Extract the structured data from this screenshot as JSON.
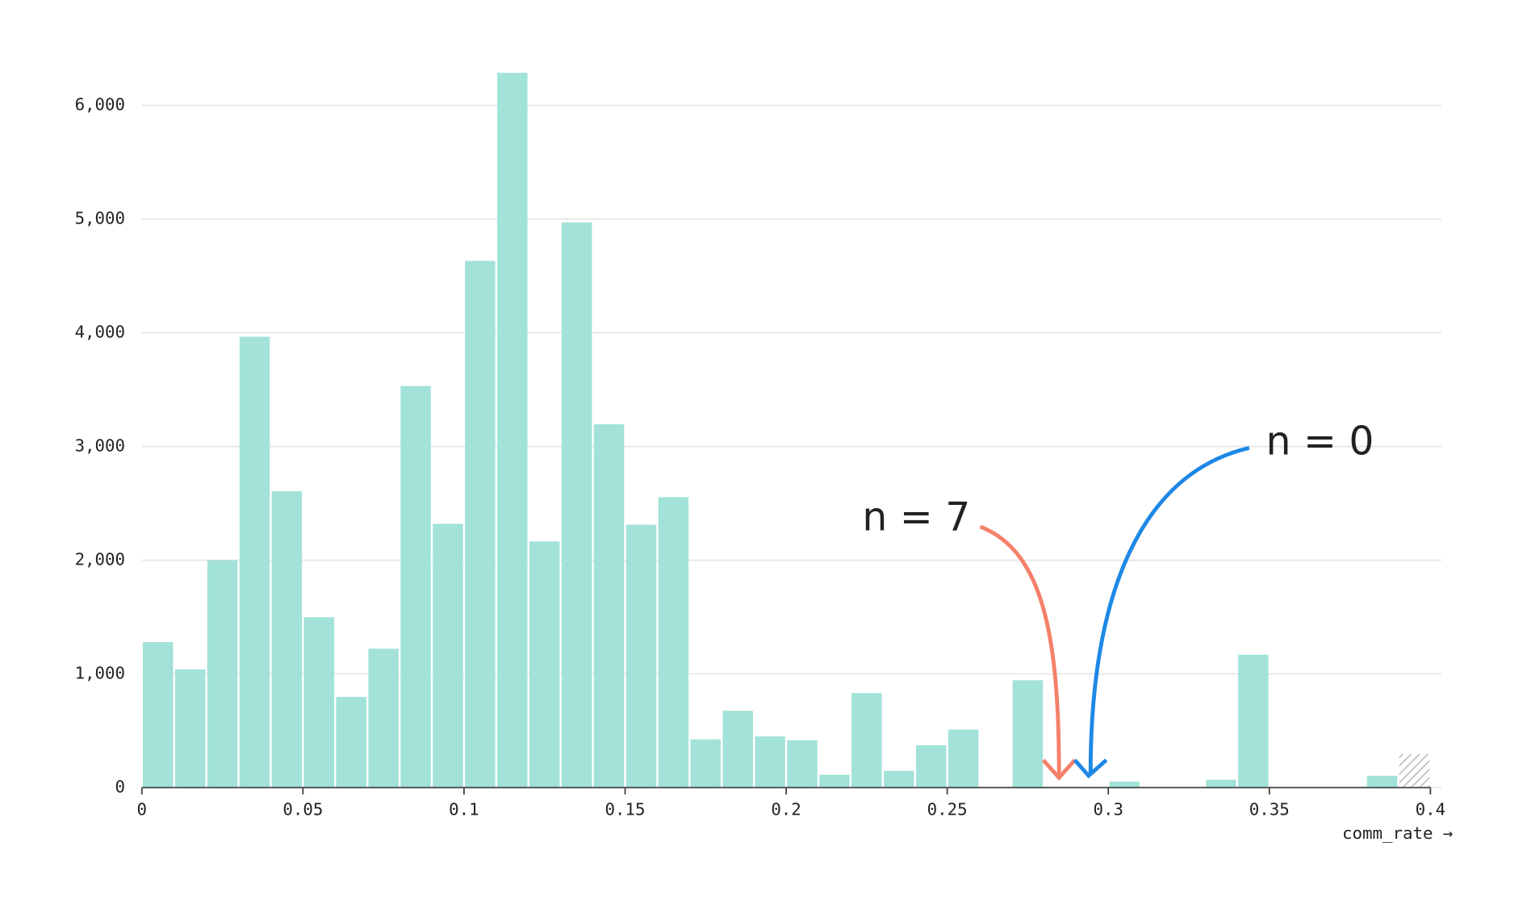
{
  "chart_data": {
    "type": "histogram",
    "x_label": "comm_rate →",
    "bins": [
      0,
      0.01,
      0.02,
      0.03,
      0.04,
      0.05,
      0.06,
      0.07,
      0.08,
      0.09,
      0.1,
      0.11,
      0.12,
      0.13,
      0.14,
      0.15,
      0.16,
      0.17,
      0.18,
      0.19,
      0.2,
      0.21,
      0.22,
      0.23,
      0.24,
      0.25,
      0.26,
      0.27,
      0.28,
      0.29,
      0.3,
      0.31,
      0.32,
      0.33,
      0.34,
      0.35,
      0.36,
      0.37,
      0.38,
      0.39,
      0.4
    ],
    "values": [
      1280,
      1040,
      2000,
      3965,
      2606,
      1498,
      797,
      1221,
      3532,
      2320,
      4632,
      6286,
      2165,
      4970,
      3195,
      2312,
      2554,
      424,
      675,
      450,
      416,
      113,
      831,
      147,
      372,
      511,
      0,
      944,
      7,
      0,
      52,
      0,
      0,
      69,
      1169,
      0,
      0,
      0,
      104,
      294
    ],
    "hatched_indices": [
      39
    ],
    "color": "#a2e2d8",
    "xlim": [
      0,
      0.4
    ],
    "xticks": [
      0,
      0.05,
      0.1,
      0.15,
      0.2,
      0.25,
      0.3,
      0.35,
      0.4
    ],
    "ylim": [
      0,
      6000
    ],
    "yticks": [
      0,
      {
        "value": 1000,
        "label": "1,000"
      },
      {
        "value": 2000,
        "label": "2,000"
      },
      {
        "value": 3000,
        "label": "3,000"
      },
      {
        "value": 4000,
        "label": "4,000"
      },
      {
        "value": 5000,
        "label": "5,000"
      },
      {
        "value": 6000,
        "label": "6,000"
      }
    ],
    "grid": true,
    "annotations": [
      {
        "text": "n = 7",
        "color": "#f26b4f"
      },
      {
        "text": "n = 0",
        "color": "#1e88e5"
      }
    ]
  }
}
